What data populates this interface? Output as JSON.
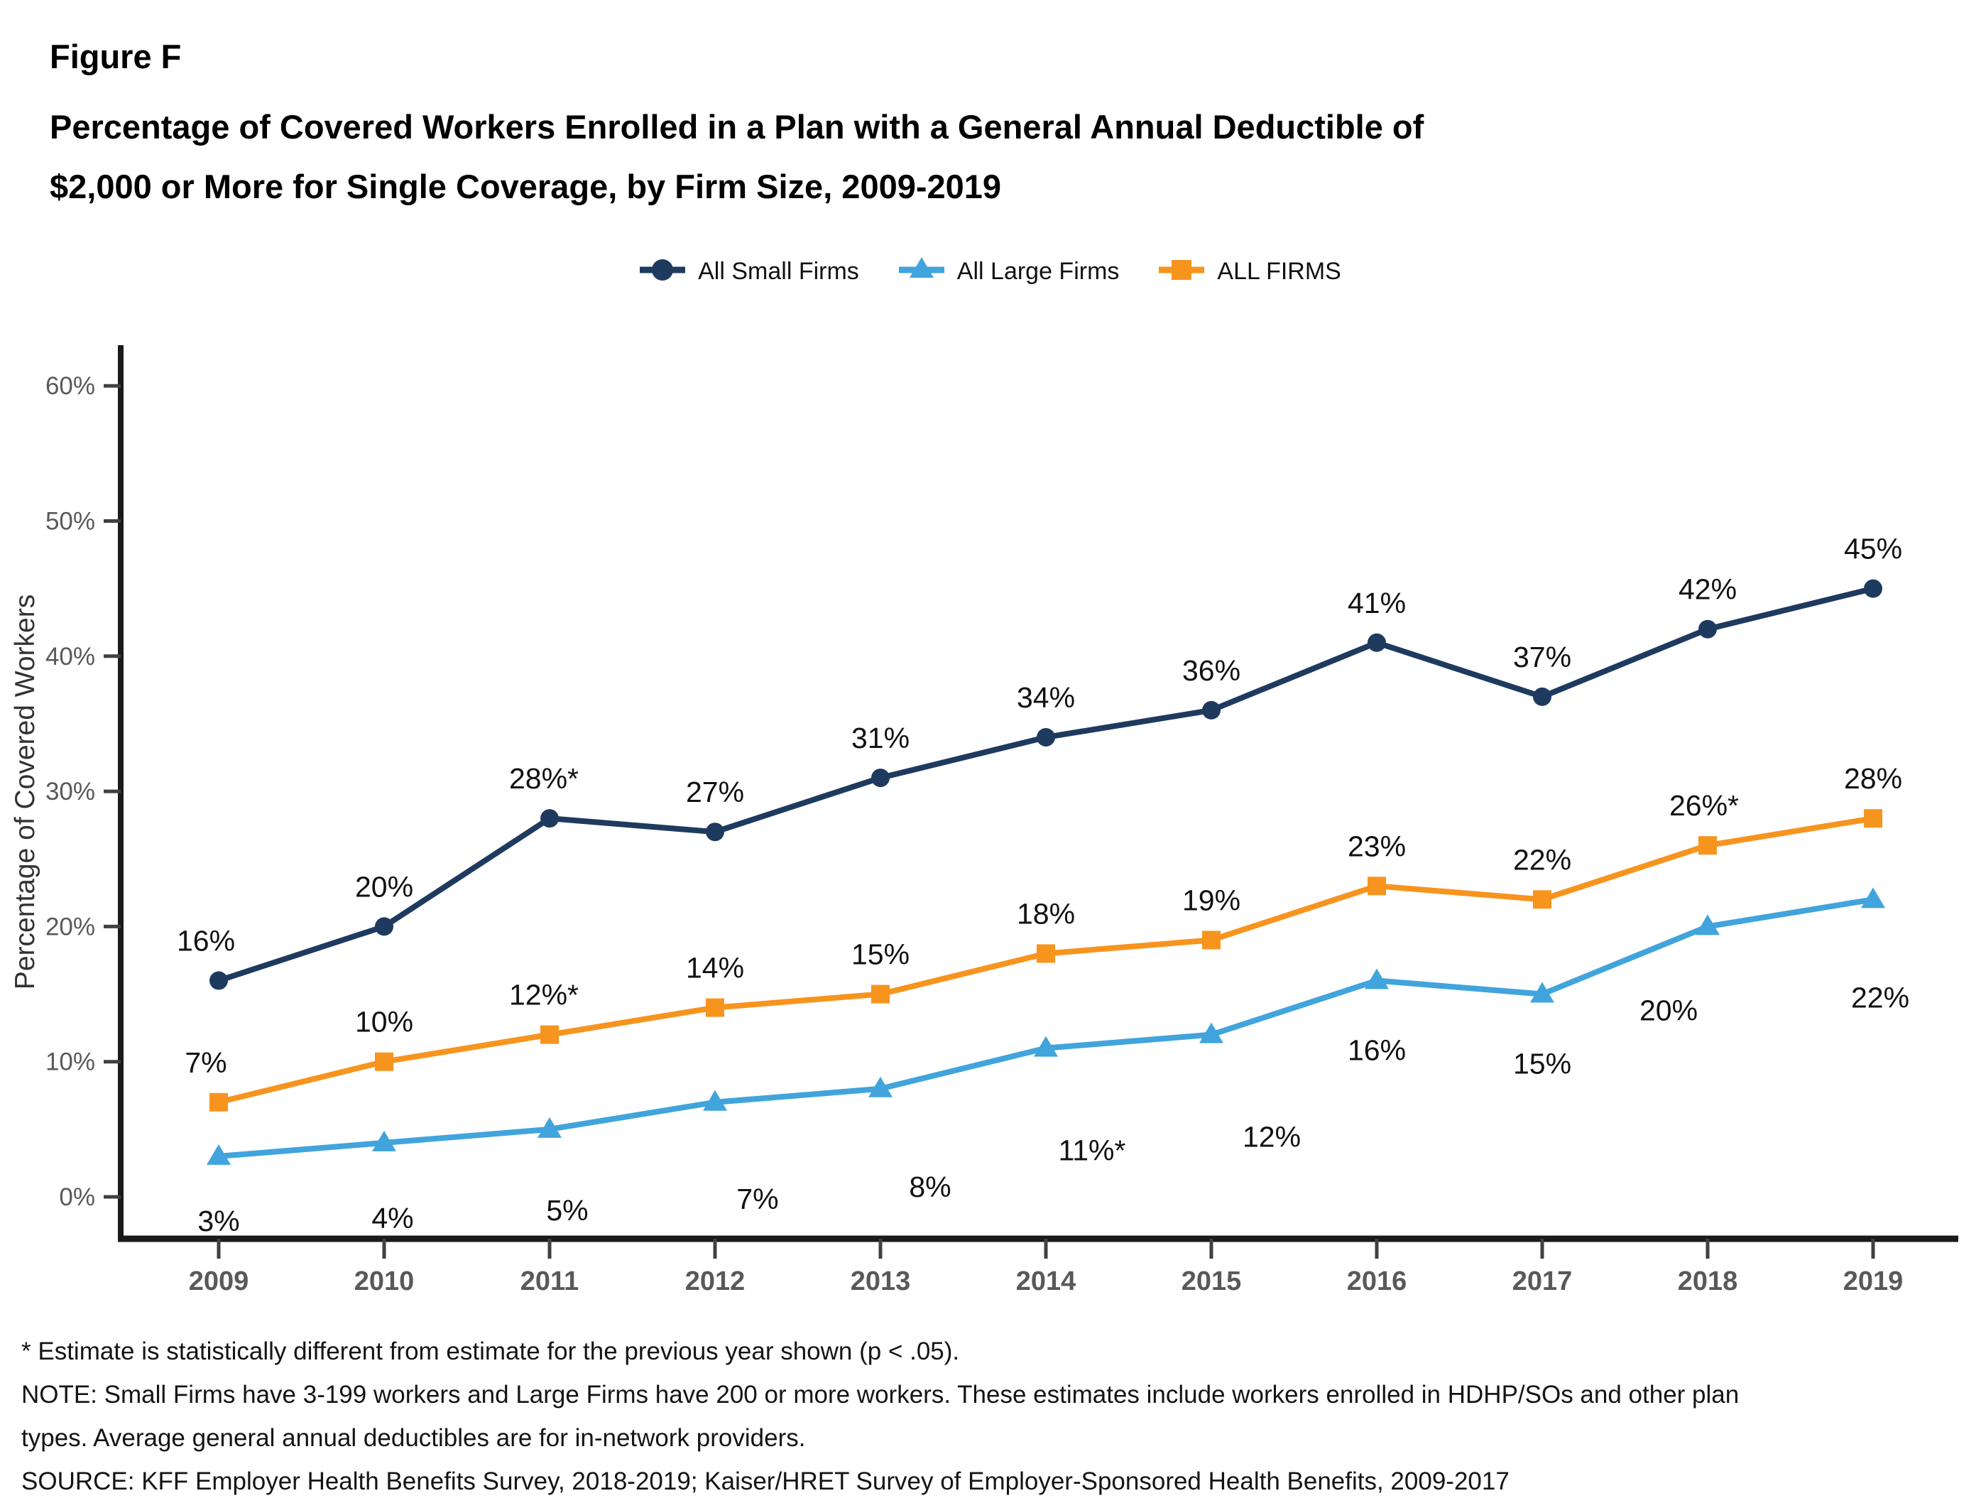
{
  "header": {
    "figure_label": "Figure F",
    "title_line1": "Percentage of Covered Workers Enrolled in a Plan with a General Annual Deductible of",
    "title_line2": "$2,000 or More for Single Coverage, by Firm Size, 2009-2019"
  },
  "legend": {
    "items": [
      {
        "label": "All Small Firms",
        "marker": "circle"
      },
      {
        "label": "All Large Firms",
        "marker": "triangle"
      },
      {
        "label": "ALL FIRMS",
        "marker": "square"
      }
    ]
  },
  "chart_data": {
    "type": "line",
    "x": [
      2009,
      2010,
      2011,
      2012,
      2013,
      2014,
      2015,
      2016,
      2017,
      2018,
      2019
    ],
    "series": [
      {
        "name": "All Small Firms",
        "marker": "circle",
        "color": "#1F3A5F",
        "values": [
          16,
          20,
          28,
          27,
          31,
          34,
          36,
          41,
          37,
          42,
          45
        ],
        "labels": [
          "16%",
          "20%",
          "28%*",
          "27%",
          "31%",
          "34%",
          "36%",
          "41%",
          "37%",
          "42%",
          "45%"
        ],
        "label_position": "above"
      },
      {
        "name": "All Large Firms",
        "marker": "triangle",
        "color": "#41A4DC",
        "values": [
          3,
          4,
          5,
          7,
          8,
          11,
          12,
          16,
          15,
          20,
          22
        ],
        "labels": [
          "3%",
          "4%",
          "5%",
          "7%",
          "8%",
          "11%*",
          "12%",
          "16%",
          "15%",
          "20%",
          "22%"
        ],
        "label_position": "below"
      },
      {
        "name": "ALL FIRMS",
        "marker": "square",
        "color": "#F7941E",
        "values": [
          7,
          10,
          12,
          14,
          15,
          18,
          19,
          23,
          22,
          26,
          28
        ],
        "labels": [
          "7%",
          "10%",
          "12%*",
          "14%",
          "15%",
          "18%",
          "19%",
          "23%",
          "22%",
          "26%*",
          "28%"
        ],
        "label_position": "above"
      }
    ],
    "title": "Percentage of Covered Workers Enrolled in a Plan with a General Annual Deductible of $2,000 or More for Single Coverage, by Firm Size, 2009-2019",
    "xlabel": "",
    "ylabel": "Percentage of Covered Workers",
    "ylim": [
      0,
      60
    ],
    "ytick_step": 10,
    "ytick_suffix": "%",
    "grid": false,
    "legend_position": "top"
  },
  "axes": {
    "ytick_labels": [
      "0%",
      "10%",
      "20%",
      "30%",
      "40%",
      "50%",
      "60%"
    ],
    "xtick_labels": [
      "2009",
      "2010",
      "2011",
      "2012",
      "2013",
      "2014",
      "2015",
      "2016",
      "2017",
      "2018",
      "2019"
    ]
  },
  "colors": {
    "axis": "#1A1A1A",
    "tick": "#404040",
    "tick_label": "#595959",
    "data_label": "#111111"
  },
  "footnotes": {
    "star": "* Estimate is statistically different from estimate for the previous year shown (p < .05).",
    "note_line1": "NOTE: Small Firms have 3-199 workers and Large Firms have 200 or more workers. These estimates include workers enrolled in HDHP/SOs and other plan",
    "note_line2": "types. Average general annual deductibles are for in-network providers.",
    "source": "SOURCE: KFF Employer Health Benefits Survey, 2018-2019; Kaiser/HRET Survey of Employer-Sponsored Health Benefits, 2009-2017"
  }
}
